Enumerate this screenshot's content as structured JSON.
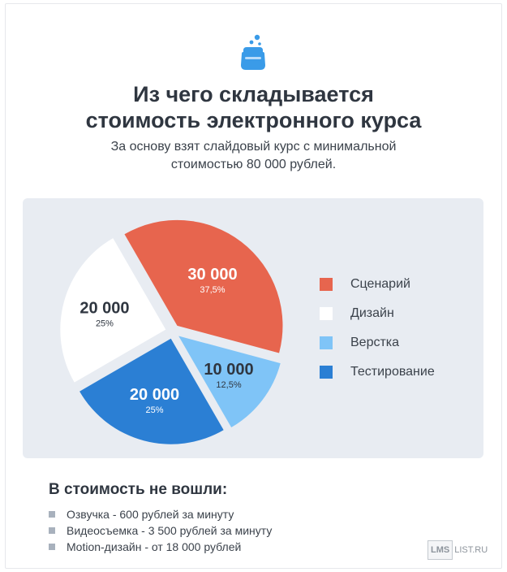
{
  "header": {
    "icon": "wallet-icon",
    "title_line1": "Из чего складывается",
    "title_line2": "стоимость электронного курса",
    "subtitle_line1": "За основу взят слайдовый курс с минимальной",
    "subtitle_line2": "стоимостью 80 000 рублей."
  },
  "chart_data": {
    "type": "pie",
    "title": "Из чего складывается стоимость электронного курса",
    "total": 80000,
    "slices": [
      {
        "name": "Сценарий",
        "value": 30000,
        "value_label": "30 000",
        "percent_label": "37,5%",
        "percent": 37.5,
        "color": "#e7654e",
        "text_color": "#ffffff"
      },
      {
        "name": "Верстка",
        "value": 10000,
        "value_label": "10 000",
        "percent_label": "12,5%",
        "percent": 12.5,
        "color": "#7fc4f7",
        "text_color": "#2f3640"
      },
      {
        "name": "Тестирование",
        "value": 20000,
        "value_label": "20 000",
        "percent_label": "25%",
        "percent": 25,
        "color": "#2b7fd4",
        "text_color": "#ffffff"
      },
      {
        "name": "Дизайн",
        "value": 20000,
        "value_label": "20 000",
        "percent_label": "25%",
        "percent": 25,
        "color": "#ffffff",
        "text_color": "#2f3640"
      }
    ],
    "legend_order": [
      "Сценарий",
      "Дизайн",
      "Верстка",
      "Тестирование"
    ],
    "legend_position": "right"
  },
  "excluded": {
    "title": "В стоимость не вошли:",
    "items": [
      "Озвучка - 600 рублей за минуту",
      "Видеосъемка - 3 500 рублей за минуту",
      "Motion-дизайн - от 18 000 рублей"
    ]
  },
  "watermark": {
    "box": "LMS",
    "text": "LIST.RU"
  }
}
